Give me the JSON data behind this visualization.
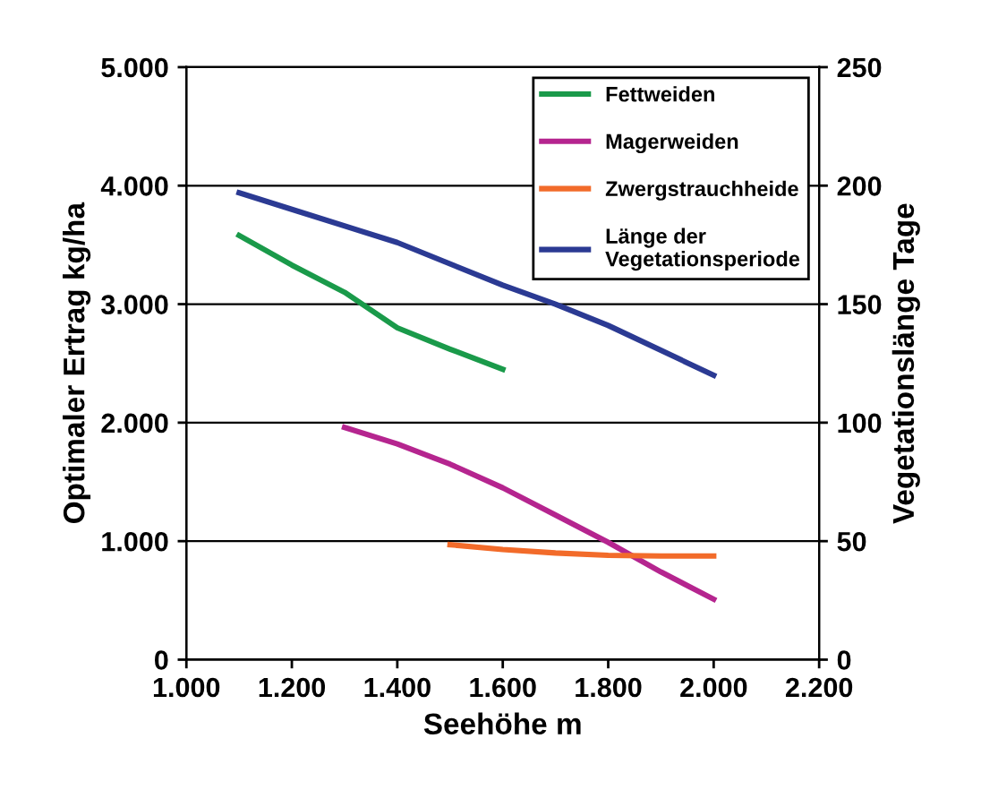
{
  "chart_data": {
    "type": "line",
    "xlabel": "Seehöhe m",
    "ylabel": "Optimaler Ertrag kg/ha",
    "y2label": "Vegetationslänge Tage",
    "xlim": [
      1000,
      2200
    ],
    "xticks": [
      {
        "value": 1000,
        "label": "1.000"
      },
      {
        "value": 1200,
        "label": "1.200"
      },
      {
        "value": 1400,
        "label": "1.400"
      },
      {
        "value": 1600,
        "label": "1.600"
      },
      {
        "value": 1800,
        "label": "1.800"
      },
      {
        "value": 2000,
        "label": "2.000"
      },
      {
        "value": 2200,
        "label": "2.200"
      }
    ],
    "ylim": [
      0,
      5000
    ],
    "yticks": [
      0,
      {
        "value": 1000,
        "label": "1.000"
      },
      {
        "value": 2000,
        "label": "2.000"
      },
      {
        "value": 3000,
        "label": "3.000"
      },
      {
        "value": 4000,
        "label": "4.000"
      },
      {
        "value": 5000,
        "label": "5.000"
      }
    ],
    "y2lim": [
      0,
      250
    ],
    "y2ticks": [
      0,
      50,
      100,
      150,
      200,
      250
    ],
    "grid": "y",
    "legend": "top right",
    "marker": "none",
    "line_style": "solid",
    "series": [
      {
        "name": "Fettweiden",
        "color": "#1a9a4a",
        "x": [
          1100,
          1200,
          1300,
          1400,
          1500,
          1600
        ],
        "values": [
          3580,
          3330,
          3100,
          2800,
          2620,
          2450
        ]
      },
      {
        "name": "Magerweiden",
        "color": "#b5258f",
        "x": [
          1300,
          1400,
          1500,
          1600,
          1700,
          1800,
          1900,
          2000
        ],
        "values": [
          1960,
          1820,
          1650,
          1450,
          1220,
          990,
          740,
          510
        ]
      },
      {
        "name": "Zwergstrauchheide",
        "color": "#f26b2a",
        "x": [
          1500,
          1600,
          1700,
          1800,
          1900,
          2000
        ],
        "values": [
          970,
          930,
          900,
          880,
          875,
          875
        ]
      },
      {
        "name": "Länge der\nVegetationsperiode",
        "color": "#2b3a93",
        "axis": "y2",
        "x": [
          1100,
          1200,
          1400,
          1600,
          1700,
          1800,
          2000
        ],
        "values": [
          197,
          190,
          176,
          158,
          150,
          141,
          120
        ]
      }
    ]
  }
}
